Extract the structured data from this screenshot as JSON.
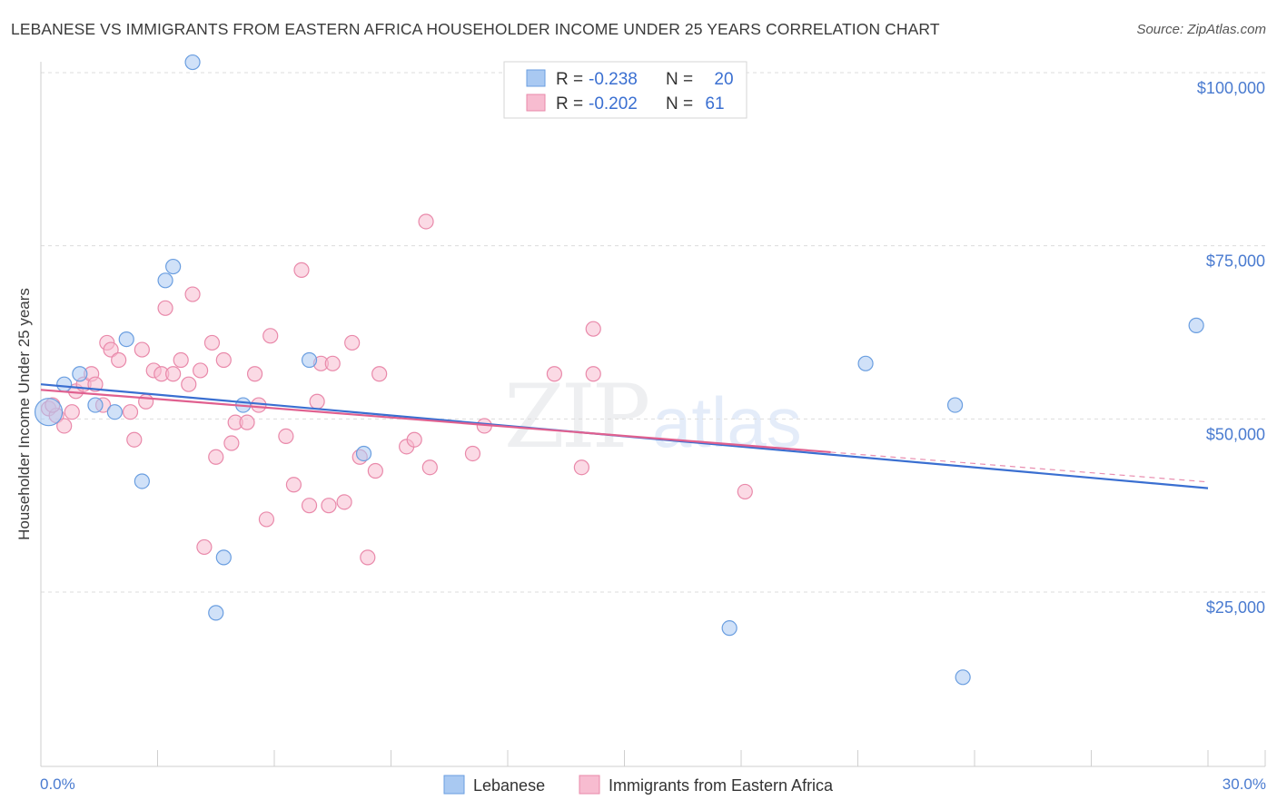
{
  "title": "LEBANESE VS IMMIGRANTS FROM EASTERN AFRICA HOUSEHOLDER INCOME UNDER 25 YEARS CORRELATION CHART",
  "source": "Source: ZipAtlas.com",
  "watermark": {
    "zip": "ZIP",
    "atlas": "atlas"
  },
  "stats": [
    {
      "r_label": "R =",
      "r": "-0.238",
      "n_label": "N =",
      "n": "20"
    },
    {
      "r_label": "R =",
      "r": "-0.202",
      "n_label": "N =",
      "n": "61"
    }
  ],
  "colors": {
    "lebanese_fill": "#a9c9f2",
    "lebanese_stroke": "#6a9ee0",
    "lebanese_line": "#3a6fd1",
    "eafrica_fill": "#f7bcd0",
    "eafrica_stroke": "#e989aa",
    "eafrica_line": "#e0608f"
  },
  "chart_data": {
    "type": "scatter",
    "title": "LEBANESE VS IMMIGRANTS FROM EASTERN AFRICA HOUSEHOLDER INCOME UNDER 25 YEARS CORRELATION CHART",
    "xlabel": "",
    "ylabel": "Householder Income Under 25 years",
    "xlim": [
      0,
      30
    ],
    "ylim": [
      0,
      105000
    ],
    "x_tick_labels": [
      "0.0%",
      "30.0%"
    ],
    "y_ticks": [
      25000,
      50000,
      75000,
      100000
    ],
    "y_tick_labels": [
      "$25,000",
      "$50,000",
      "$75,000",
      "$100,000"
    ],
    "legend": [
      "Lebanese",
      "Immigrants from Eastern Africa"
    ],
    "series": [
      {
        "name": "Lebanese",
        "r": -0.238,
        "n": 20,
        "trend": {
          "x": [
            0,
            30
          ],
          "y": [
            55000,
            40000
          ]
        },
        "points": [
          {
            "x": 0.2,
            "y": 51000,
            "big": true
          },
          {
            "x": 0.6,
            "y": 55000
          },
          {
            "x": 1.0,
            "y": 56500
          },
          {
            "x": 1.4,
            "y": 52000
          },
          {
            "x": 1.9,
            "y": 51000
          },
          {
            "x": 2.2,
            "y": 61500
          },
          {
            "x": 2.6,
            "y": 41000
          },
          {
            "x": 3.2,
            "y": 70000
          },
          {
            "x": 3.4,
            "y": 72000
          },
          {
            "x": 3.9,
            "y": 101500
          },
          {
            "x": 4.5,
            "y": 22000
          },
          {
            "x": 4.7,
            "y": 30000
          },
          {
            "x": 5.2,
            "y": 52000
          },
          {
            "x": 6.9,
            "y": 58500
          },
          {
            "x": 8.3,
            "y": 45000
          },
          {
            "x": 17.7,
            "y": 19800
          },
          {
            "x": 21.2,
            "y": 58000
          },
          {
            "x": 23.5,
            "y": 52000
          },
          {
            "x": 23.7,
            "y": 12700
          },
          {
            "x": 29.7,
            "y": 63500
          }
        ]
      },
      {
        "name": "Immigrants from Eastern Africa",
        "r": -0.202,
        "n": 61,
        "trend": {
          "x": [
            0,
            20.3
          ],
          "y": [
            54200,
            45200
          ]
        },
        "points": [
          {
            "x": 0.2,
            "y": 51500
          },
          {
            "x": 0.4,
            "y": 50500
          },
          {
            "x": 0.6,
            "y": 49000
          },
          {
            "x": 0.8,
            "y": 51000
          },
          {
            "x": 0.9,
            "y": 54000
          },
          {
            "x": 1.1,
            "y": 55000
          },
          {
            "x": 1.3,
            "y": 56500
          },
          {
            "x": 1.4,
            "y": 55000
          },
          {
            "x": 1.6,
            "y": 52000
          },
          {
            "x": 1.7,
            "y": 61000
          },
          {
            "x": 1.8,
            "y": 60000
          },
          {
            "x": 2.0,
            "y": 58500
          },
          {
            "x": 2.3,
            "y": 51000
          },
          {
            "x": 2.4,
            "y": 47000
          },
          {
            "x": 2.6,
            "y": 60000
          },
          {
            "x": 2.7,
            "y": 52500
          },
          {
            "x": 2.9,
            "y": 57000
          },
          {
            "x": 3.1,
            "y": 56500
          },
          {
            "x": 3.2,
            "y": 66000
          },
          {
            "x": 3.4,
            "y": 56500
          },
          {
            "x": 3.6,
            "y": 58500
          },
          {
            "x": 3.8,
            "y": 55000
          },
          {
            "x": 3.9,
            "y": 68000
          },
          {
            "x": 4.1,
            "y": 57000
          },
          {
            "x": 4.2,
            "y": 31500
          },
          {
            "x": 4.4,
            "y": 61000
          },
          {
            "x": 4.5,
            "y": 44500
          },
          {
            "x": 4.7,
            "y": 58500
          },
          {
            "x": 4.9,
            "y": 46500
          },
          {
            "x": 5.0,
            "y": 49500
          },
          {
            "x": 5.3,
            "y": 49500
          },
          {
            "x": 5.5,
            "y": 56500
          },
          {
            "x": 5.6,
            "y": 52000
          },
          {
            "x": 5.8,
            "y": 35500
          },
          {
            "x": 5.9,
            "y": 62000
          },
          {
            "x": 6.3,
            "y": 47500
          },
          {
            "x": 6.5,
            "y": 40500
          },
          {
            "x": 6.7,
            "y": 71500
          },
          {
            "x": 6.9,
            "y": 37500
          },
          {
            "x": 7.1,
            "y": 52500
          },
          {
            "x": 7.2,
            "y": 58000
          },
          {
            "x": 7.4,
            "y": 37500
          },
          {
            "x": 7.5,
            "y": 58000
          },
          {
            "x": 7.8,
            "y": 38000
          },
          {
            "x": 8.0,
            "y": 61000
          },
          {
            "x": 8.2,
            "y": 44500
          },
          {
            "x": 8.4,
            "y": 30000
          },
          {
            "x": 8.6,
            "y": 42500
          },
          {
            "x": 8.7,
            "y": 56500
          },
          {
            "x": 9.4,
            "y": 46000
          },
          {
            "x": 9.6,
            "y": 47000
          },
          {
            "x": 9.9,
            "y": 78500
          },
          {
            "x": 10.0,
            "y": 43000
          },
          {
            "x": 11.1,
            "y": 45000
          },
          {
            "x": 11.4,
            "y": 49000
          },
          {
            "x": 13.2,
            "y": 56500
          },
          {
            "x": 13.9,
            "y": 43000
          },
          {
            "x": 14.2,
            "y": 56500
          },
          {
            "x": 14.2,
            "y": 63000
          },
          {
            "x": 18.1,
            "y": 39500
          },
          {
            "x": 0.3,
            "y": 52000
          }
        ]
      }
    ]
  }
}
